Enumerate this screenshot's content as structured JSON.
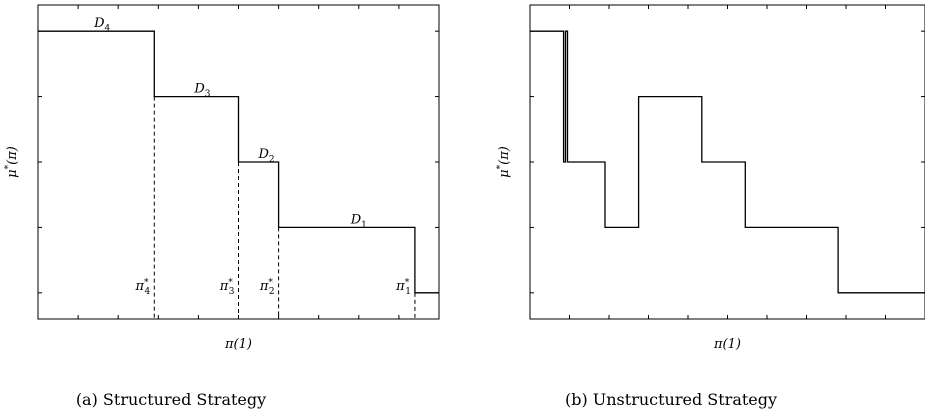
{
  "chart_data": [
    {
      "type": "line",
      "subtype": "step",
      "caption": "(a) Structured Strategy",
      "xlabel": "π(1)",
      "ylabel": "μ*(π)",
      "xlim": [
        0,
        1
      ],
      "ylim": [
        -0.4,
        4.4
      ],
      "xticks": [
        "0",
        "0.1",
        "0.2",
        "0.3",
        "0.4",
        "0.5",
        "0.6",
        "0.7",
        "0.8",
        "0.9",
        "1"
      ],
      "yticks": [
        "0",
        "1",
        "2",
        "3",
        "4"
      ],
      "grid": false,
      "series": [
        {
          "x": [
            0,
            0.29,
            0.29,
            0.5,
            0.5,
            0.6,
            0.6,
            0.94,
            0.94,
            1
          ],
          "y": [
            4,
            4,
            3,
            3,
            2,
            2,
            1,
            1,
            0,
            0
          ]
        }
      ],
      "thresholds": [
        {
          "x": 0.29,
          "y_top": 3,
          "label": "π*4"
        },
        {
          "x": 0.5,
          "y_top": 2,
          "label": "π*3"
        },
        {
          "x": 0.6,
          "y_top": 1,
          "label": "π*2"
        },
        {
          "x": 0.94,
          "y_top": 0,
          "label": "π*1"
        }
      ],
      "segment_labels": [
        {
          "label": "D4",
          "x": 0.16,
          "y": 4
        },
        {
          "label": "D3",
          "x": 0.41,
          "y": 3
        },
        {
          "label": "D2",
          "x": 0.57,
          "y": 2
        },
        {
          "label": "D1",
          "x": 0.8,
          "y": 1
        }
      ]
    },
    {
      "type": "line",
      "subtype": "step",
      "caption": "(b) Unstructured Strategy",
      "xlabel": "π(1)",
      "ylabel": "μ*(π)",
      "xlim": [
        0,
        1
      ],
      "ylim": [
        -0.4,
        4.4
      ],
      "xticks": [
        "0",
        "0.1",
        "0.2",
        "0.3",
        "0.4",
        "0.5",
        "0.6",
        "0.7",
        "0.8",
        "0.9"
      ],
      "yticks": [
        "0",
        "1",
        "2",
        "3",
        "4"
      ],
      "grid": false,
      "series": [
        {
          "x": [
            0,
            0.085,
            0.085,
            0.09,
            0.09,
            0.095,
            0.095,
            0.19,
            0.19,
            0.275,
            0.275,
            0.435,
            0.435,
            0.545,
            0.545,
            0.78,
            0.78,
            1
          ],
          "y": [
            4,
            4,
            2,
            2,
            4,
            4,
            2,
            2,
            1,
            1,
            3,
            3,
            2,
            2,
            1,
            1,
            0,
            0
          ]
        }
      ]
    }
  ]
}
